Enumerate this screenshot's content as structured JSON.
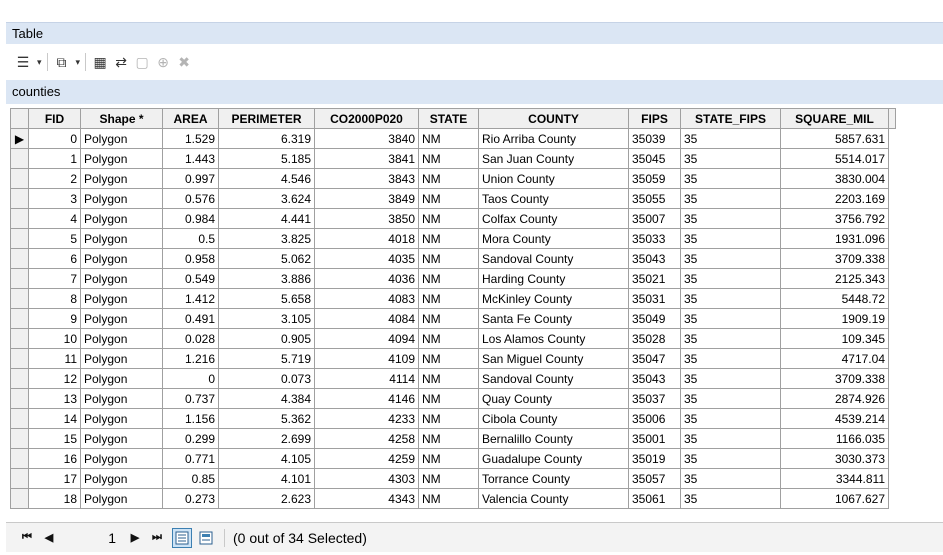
{
  "window": {
    "title": "Table"
  },
  "toolbar": {
    "buttons": [
      {
        "name": "table-options-icon",
        "glyph": "☰",
        "dropdown": true,
        "enabled": true
      },
      {
        "name": "related-tables-icon",
        "glyph": "⧉",
        "dropdown": true,
        "enabled": true
      },
      {
        "name": "select-by-attributes-icon",
        "glyph": "▦",
        "dropdown": false,
        "enabled": true
      },
      {
        "name": "switch-selection-icon",
        "glyph": "⇄",
        "dropdown": false,
        "enabled": true
      },
      {
        "name": "clear-selection-icon",
        "glyph": "▢",
        "dropdown": false,
        "enabled": false
      },
      {
        "name": "zoom-to-selected-icon",
        "glyph": "⊕",
        "dropdown": false,
        "enabled": false
      },
      {
        "name": "delete-selected-icon",
        "glyph": "✖",
        "dropdown": false,
        "enabled": false
      }
    ]
  },
  "layer": {
    "name": "counties"
  },
  "table": {
    "columns": [
      "FID",
      "Shape *",
      "AREA",
      "PERIMETER",
      "CO2000P020",
      "STATE",
      "COUNTY",
      "FIPS",
      "STATE_FIPS",
      "SQUARE_MIL"
    ],
    "rows": [
      [
        "0",
        "Polygon",
        "1.529",
        "6.319",
        "3840",
        "NM",
        "Rio Arriba County",
        "35039",
        "35",
        "5857.631"
      ],
      [
        "1",
        "Polygon",
        "1.443",
        "5.185",
        "3841",
        "NM",
        "San Juan County",
        "35045",
        "35",
        "5514.017"
      ],
      [
        "2",
        "Polygon",
        "0.997",
        "4.546",
        "3843",
        "NM",
        "Union County",
        "35059",
        "35",
        "3830.004"
      ],
      [
        "3",
        "Polygon",
        "0.576",
        "3.624",
        "3849",
        "NM",
        "Taos County",
        "35055",
        "35",
        "2203.169"
      ],
      [
        "4",
        "Polygon",
        "0.984",
        "4.441",
        "3850",
        "NM",
        "Colfax County",
        "35007",
        "35",
        "3756.792"
      ],
      [
        "5",
        "Polygon",
        "0.5",
        "3.825",
        "4018",
        "NM",
        "Mora County",
        "35033",
        "35",
        "1931.096"
      ],
      [
        "6",
        "Polygon",
        "0.958",
        "5.062",
        "4035",
        "NM",
        "Sandoval County",
        "35043",
        "35",
        "3709.338"
      ],
      [
        "7",
        "Polygon",
        "0.549",
        "3.886",
        "4036",
        "NM",
        "Harding County",
        "35021",
        "35",
        "2125.343"
      ],
      [
        "8",
        "Polygon",
        "1.412",
        "5.658",
        "4083",
        "NM",
        "McKinley County",
        "35031",
        "35",
        "5448.72"
      ],
      [
        "9",
        "Polygon",
        "0.491",
        "3.105",
        "4084",
        "NM",
        "Santa Fe County",
        "35049",
        "35",
        "1909.19"
      ],
      [
        "10",
        "Polygon",
        "0.028",
        "0.905",
        "4094",
        "NM",
        "Los Alamos County",
        "35028",
        "35",
        "109.345"
      ],
      [
        "11",
        "Polygon",
        "1.216",
        "5.719",
        "4109",
        "NM",
        "San Miguel County",
        "35047",
        "35",
        "4717.04"
      ],
      [
        "12",
        "Polygon",
        "0",
        "0.073",
        "4114",
        "NM",
        "Sandoval County",
        "35043",
        "35",
        "3709.338"
      ],
      [
        "13",
        "Polygon",
        "0.737",
        "4.384",
        "4146",
        "NM",
        "Quay County",
        "35037",
        "35",
        "2874.926"
      ],
      [
        "14",
        "Polygon",
        "1.156",
        "5.362",
        "4233",
        "NM",
        "Cibola County",
        "35006",
        "35",
        "4539.214"
      ],
      [
        "15",
        "Polygon",
        "0.299",
        "2.699",
        "4258",
        "NM",
        "Bernalillo County",
        "35001",
        "35",
        "1166.035"
      ],
      [
        "16",
        "Polygon",
        "0.771",
        "4.105",
        "4259",
        "NM",
        "Guadalupe County",
        "35019",
        "35",
        "3030.373"
      ],
      [
        "17",
        "Polygon",
        "0.85",
        "4.101",
        "4303",
        "NM",
        "Torrance County",
        "35057",
        "35",
        "3344.811"
      ],
      [
        "18",
        "Polygon",
        "0.273",
        "2.623",
        "4343",
        "NM",
        "Valencia County",
        "35061",
        "35",
        "1067.627"
      ]
    ],
    "current_row_marker": "▶"
  },
  "status": {
    "nav_first": "⏮",
    "nav_prev": "◀",
    "current_record": "1",
    "nav_next": "▶",
    "nav_last": "⏭",
    "selection_text": "(0 out of 34 Selected)"
  }
}
